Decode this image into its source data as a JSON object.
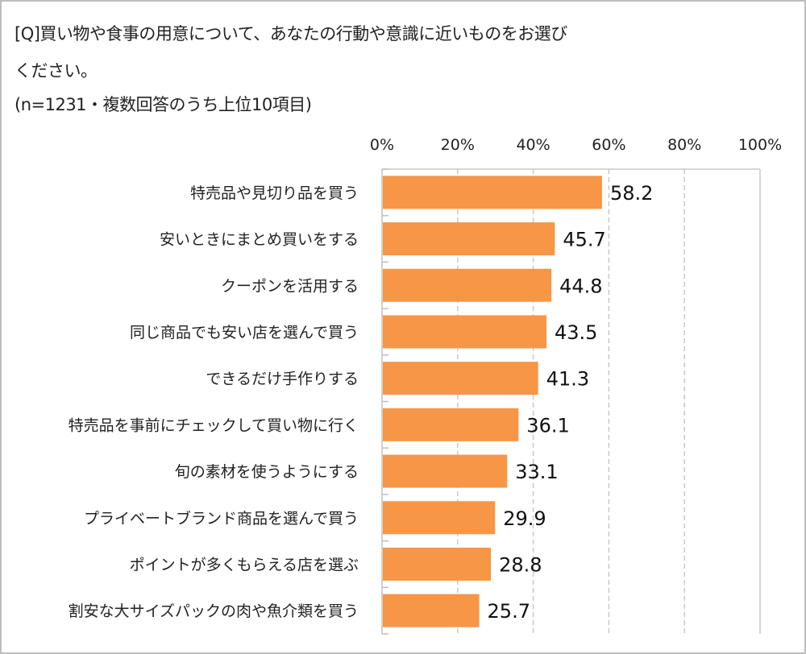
{
  "title_lines": [
    "[Q]買い物や食事の用意について、あなたの行動や意識に近いものをお選び",
    "ください。",
    "(n=1231・複数回答のうち上位10項目)"
  ],
  "chart_data": {
    "type": "bar",
    "orientation": "horizontal",
    "title": "[Q]買い物や食事の用意について、あなたの行動や意識に近いものをお選びください。(n=1231・複数回答のうち上位10項目)",
    "categories": [
      "特売品や見切り品を買う",
      "安いときにまとめ買いをする",
      "クーポンを活用する",
      "同じ商品でも安い店を選んで買う",
      "できるだけ手作りする",
      "特売品を事前にチェックして買い物に行く",
      "旬の素材を使うようにする",
      "プライベートブランド商品を選んで買う",
      "ポイントが多くもらえる店を選ぶ",
      "割安な大サイズパックの肉や魚介類を買う"
    ],
    "values": [
      58.2,
      45.7,
      44.8,
      43.5,
      41.3,
      36.1,
      33.1,
      29.9,
      28.8,
      25.7
    ],
    "value_labels": [
      "58.2",
      "45.7",
      "44.8",
      "43.5",
      "41.3",
      "36.1",
      "33.1",
      "29.9",
      "28.8",
      "25.7"
    ],
    "xlim": [
      0,
      100
    ],
    "xticks": [
      0,
      20,
      40,
      60,
      80,
      100
    ],
    "xtick_labels": [
      "0%",
      "20%",
      "40%",
      "60%",
      "80%",
      "100%"
    ],
    "xaxis_position": "top",
    "grid": "vertical dashed",
    "legend": "none",
    "bar_color": "#f79646",
    "grid_color": "#c8c8c8"
  }
}
